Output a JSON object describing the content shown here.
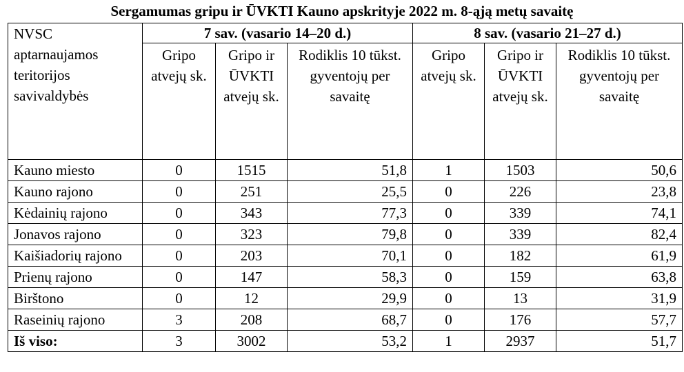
{
  "title": "Sergamumas gripu ir ŪVKTI Kauno apskrityje 2022 m. 8-ąją metų savaitę",
  "header": {
    "first_col": "NVSC aptarnaujamos teritorijos savivaldybės",
    "week7": "7 sav. (vasario 14–20 d.)",
    "week8": "8 sav. (vasario 21–27 d.)",
    "sub": {
      "flu": "Gripo atvejų sk.",
      "flu_ari": "Gripo ir ŪVKTI atvejų sk.",
      "rate7": "Rodiklis 10 tūkst. gyventojų per savaitę",
      "rate8": "Rodiklis 10 tūkst. gyventojų per savaitę"
    }
  },
  "rows": [
    {
      "name": "Kauno miesto",
      "w7_flu": "0",
      "w7_total": "1515",
      "w7_rate": "51,8",
      "w8_flu": "1",
      "w8_total": "1503",
      "w8_rate": "50,6"
    },
    {
      "name": "Kauno rajono",
      "w7_flu": "0",
      "w7_total": "251",
      "w7_rate": "25,5",
      "w8_flu": "0",
      "w8_total": "226",
      "w8_rate": "23,8"
    },
    {
      "name": "Kėdainių rajono",
      "w7_flu": "0",
      "w7_total": "343",
      "w7_rate": "77,3",
      "w8_flu": "0",
      "w8_total": "339",
      "w8_rate": "74,1"
    },
    {
      "name": "Jonavos rajono",
      "w7_flu": "0",
      "w7_total": "323",
      "w7_rate": "79,8",
      "w8_flu": "0",
      "w8_total": "339",
      "w8_rate": "82,4"
    },
    {
      "name": "Kaišiadorių rajono",
      "w7_flu": "0",
      "w7_total": "203",
      "w7_rate": "70,1",
      "w8_flu": "0",
      "w8_total": "182",
      "w8_rate": "61,9"
    },
    {
      "name": "Prienų rajono",
      "w7_flu": "0",
      "w7_total": "147",
      "w7_rate": "58,3",
      "w8_flu": "0",
      "w8_total": "159",
      "w8_rate": "63,8"
    },
    {
      "name": "Birštono",
      "w7_flu": "0",
      "w7_total": "12",
      "w7_rate": "29,9",
      "w8_flu": "0",
      "w8_total": "13",
      "w8_rate": "31,9"
    },
    {
      "name": "Raseinių rajono",
      "w7_flu": "3",
      "w7_total": "208",
      "w7_rate": "68,7",
      "w8_flu": "0",
      "w8_total": "176",
      "w8_rate": "57,7"
    }
  ],
  "total": {
    "name": "Iš viso:",
    "w7_flu": "3",
    "w7_total": "3002",
    "w7_rate": "53,2",
    "w8_flu": "1",
    "w8_total": "2937",
    "w8_rate": "51,7"
  }
}
